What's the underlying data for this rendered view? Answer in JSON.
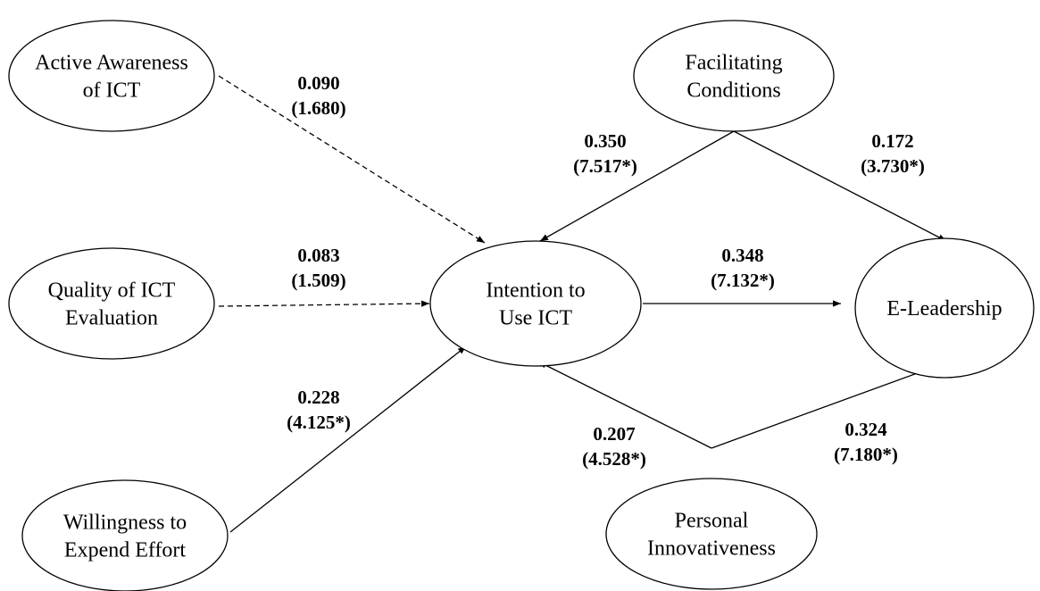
{
  "nodes": [
    {
      "lines": [
        "Active Awareness",
        "of ICT"
      ]
    },
    {
      "lines": [
        "Quality of ICT",
        "Evaluation"
      ]
    },
    {
      "lines": [
        "Willingness to",
        "Expend Effort"
      ]
    },
    {
      "lines": [
        "Intention to",
        "Use ICT"
      ]
    },
    {
      "lines": [
        "Facilitating",
        "Conditions"
      ]
    },
    {
      "lines": [
        "E-Leadership"
      ]
    },
    {
      "lines": [
        "Personal",
        "Innovativeness"
      ]
    }
  ],
  "edges": [
    {
      "coefficient": "0.090",
      "t_value": "(1.680)"
    },
    {
      "coefficient": "0.083",
      "t_value": "(1.509)"
    },
    {
      "coefficient": "0.228",
      "t_value": "(4.125*)"
    },
    {
      "coefficient": "0.350",
      "t_value": "(7.517*)"
    },
    {
      "coefficient": "0.172",
      "t_value": "(3.730*)"
    },
    {
      "coefficient": "0.348",
      "t_value": "(7.132*)"
    },
    {
      "coefficient": "0.207",
      "t_value": "(4.528*)"
    },
    {
      "coefficient": "0.324",
      "t_value": "(7.180*)"
    }
  ]
}
